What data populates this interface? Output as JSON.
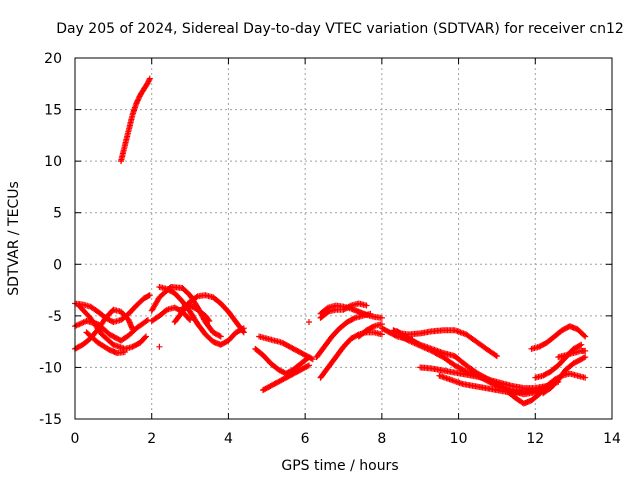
{
  "chart_data": {
    "type": "scatter",
    "title": "Day 205 of 2024, Sidereal Day-to-day VTEC variation (SDTVAR) for receiver cn12",
    "xlabel": "GPS time / hours",
    "ylabel": "SDTVAR / TECUs",
    "xlim": [
      0,
      14
    ],
    "ylim": [
      -15,
      20
    ],
    "xticks": [
      0,
      2,
      4,
      6,
      8,
      10,
      12,
      14
    ],
    "yticks": [
      -15,
      -10,
      -5,
      0,
      5,
      10,
      15,
      20
    ],
    "xtick_labels": [
      "0",
      "2",
      "4",
      "6",
      "8",
      "10",
      "12",
      "14"
    ],
    "ytick_labels": [
      "-15",
      "-10",
      "-5",
      "0",
      "5",
      "10",
      "15",
      "20"
    ],
    "grid": true,
    "legend": "none",
    "marker": "+",
    "marker_color": "#ff0000",
    "series": [
      {
        "name": "trace-1",
        "x": [
          1.2,
          1.3,
          1.4,
          1.5,
          1.6,
          1.7,
          1.8,
          1.9,
          1.95
        ],
        "y": [
          10.0,
          11.5,
          13.0,
          14.5,
          15.6,
          16.4,
          17.0,
          17.6,
          18.0
        ]
      },
      {
        "name": "trace-2",
        "x": [
          0.0,
          0.2,
          0.4,
          0.6,
          0.8,
          1.0,
          1.2,
          1.4,
          1.6,
          1.8,
          1.95
        ],
        "y": [
          -3.8,
          -3.9,
          -4.1,
          -4.6,
          -5.2,
          -5.6,
          -5.4,
          -4.8,
          -4.0,
          -3.3,
          -3.0
        ]
      },
      {
        "name": "trace-3",
        "x": [
          0.0,
          0.3,
          0.6,
          0.9,
          1.2,
          1.4,
          1.6,
          1.9
        ],
        "y": [
          -6.0,
          -5.5,
          -5.8,
          -6.8,
          -7.4,
          -6.9,
          -6.2,
          -5.4
        ]
      },
      {
        "name": "trace-4",
        "x": [
          0.0,
          0.2,
          0.4,
          0.6,
          0.8,
          1.0,
          1.2,
          1.4,
          1.5
        ],
        "y": [
          -8.2,
          -7.8,
          -7.2,
          -6.3,
          -5.2,
          -4.4,
          -4.6,
          -5.4,
          -6.3
        ]
      },
      {
        "name": "trace-5",
        "x": [
          0.1,
          0.4,
          0.7,
          1.0,
          1.3,
          1.5,
          1.7,
          1.85
        ],
        "y": [
          -4.0,
          -5.2,
          -6.8,
          -7.8,
          -8.2,
          -8.0,
          -7.6,
          -7.0
        ]
      },
      {
        "name": "trace-6",
        "x": [
          0.3,
          0.6,
          0.9,
          1.1,
          1.3
        ],
        "y": [
          -6.6,
          -7.6,
          -8.3,
          -8.6,
          -8.5
        ]
      },
      {
        "name": "trace-7",
        "x": [
          2.2
        ],
        "y": [
          -8.0
        ]
      },
      {
        "name": "trace-8",
        "x": [
          2.2,
          2.4,
          2.6,
          2.8,
          3.0,
          3.2,
          3.4,
          3.6,
          3.8,
          4.0,
          4.2,
          4.4
        ],
        "y": [
          -2.2,
          -2.4,
          -2.8,
          -3.6,
          -4.6,
          -5.8,
          -6.8,
          -7.5,
          -7.8,
          -7.4,
          -6.6,
          -6.2
        ]
      },
      {
        "name": "trace-9",
        "x": [
          2.0,
          2.2,
          2.5,
          2.8,
          3.0,
          3.2,
          3.4,
          3.6,
          3.8
        ],
        "y": [
          -4.5,
          -3.2,
          -2.2,
          -2.3,
          -3.0,
          -4.2,
          -5.6,
          -6.6,
          -7.0
        ]
      },
      {
        "name": "trace-10",
        "x": [
          2.0,
          2.2,
          2.4,
          2.6,
          2.8,
          3.0
        ],
        "y": [
          -5.5,
          -5.0,
          -4.4,
          -4.2,
          -4.6,
          -5.4
        ]
      },
      {
        "name": "trace-11",
        "x": [
          2.6,
          2.8,
          3.0,
          3.2,
          3.4,
          3.6,
          3.8,
          4.0,
          4.2,
          4.4
        ],
        "y": [
          -5.6,
          -4.6,
          -3.6,
          -3.1,
          -3.0,
          -3.2,
          -3.8,
          -4.6,
          -5.6,
          -6.6
        ]
      },
      {
        "name": "trace-12",
        "x": [
          2.8,
          3.0,
          3.2,
          3.4,
          3.5
        ],
        "y": [
          -4.2,
          -4.0,
          -4.4,
          -5.0,
          -5.5
        ]
      },
      {
        "name": "trace-13",
        "x": [
          4.8,
          5.0,
          5.2,
          5.4,
          5.6,
          5.8,
          6.0,
          6.2
        ],
        "y": [
          -7.0,
          -7.2,
          -7.4,
          -7.6,
          -8.0,
          -8.4,
          -8.8,
          -9.2
        ]
      },
      {
        "name": "trace-14",
        "x": [
          4.7,
          4.9,
          5.1,
          5.3,
          5.5,
          5.7,
          5.9,
          6.1
        ],
        "y": [
          -8.2,
          -8.8,
          -9.6,
          -10.2,
          -10.6,
          -10.2,
          -9.6,
          -9.0
        ]
      },
      {
        "name": "trace-15",
        "x": [
          4.9,
          5.1,
          5.3,
          5.5,
          5.7,
          5.9,
          6.1
        ],
        "y": [
          -12.2,
          -11.8,
          -11.4,
          -11.0,
          -10.6,
          -10.2,
          -9.8
        ]
      },
      {
        "name": "trace-16",
        "x": [
          6.1
        ],
        "y": [
          -5.6
        ]
      },
      {
        "name": "trace-17",
        "x": [
          6.4,
          6.6,
          6.8,
          7.0,
          7.2,
          7.4,
          7.6,
          7.8,
          8.0
        ],
        "y": [
          -4.8,
          -4.2,
          -4.0,
          -4.1,
          -4.3,
          -4.6,
          -4.9,
          -5.1,
          -5.2
        ]
      },
      {
        "name": "trace-18",
        "x": [
          6.4,
          6.6,
          6.8,
          7.0,
          7.2,
          7.4,
          7.6
        ],
        "y": [
          -5.2,
          -4.6,
          -4.4,
          -4.4,
          -4.0,
          -3.8,
          -4.0
        ]
      },
      {
        "name": "trace-19",
        "x": [
          6.3,
          6.5,
          6.7,
          6.9,
          7.1,
          7.3,
          7.5,
          7.7
        ],
        "y": [
          -9.0,
          -8.0,
          -7.0,
          -6.2,
          -5.6,
          -5.2,
          -5.0,
          -4.8
        ]
      },
      {
        "name": "trace-20",
        "x": [
          6.4,
          6.6,
          6.8,
          7.0,
          7.2,
          7.4,
          7.6,
          7.8,
          8.0
        ],
        "y": [
          -11.0,
          -10.0,
          -9.0,
          -8.0,
          -7.2,
          -6.8,
          -6.6,
          -6.6,
          -6.8
        ]
      },
      {
        "name": "trace-21",
        "x": [
          7.4,
          7.6,
          7.8,
          8.0
        ],
        "y": [
          -7.0,
          -6.4,
          -6.0,
          -5.8
        ]
      },
      {
        "name": "trace-22",
        "x": [
          8.3,
          8.5,
          8.7,
          9.0,
          9.3,
          9.6,
          9.9,
          10.2,
          10.5,
          10.8,
          11.0
        ],
        "y": [
          -6.4,
          -6.7,
          -6.8,
          -6.7,
          -6.5,
          -6.4,
          -6.4,
          -6.8,
          -7.6,
          -8.4,
          -8.9
        ]
      },
      {
        "name": "trace-23",
        "x": [
          8.5,
          8.7,
          9.0,
          9.3,
          9.6,
          9.9,
          10.2,
          10.5,
          10.8,
          11.1
        ],
        "y": [
          -7.0,
          -7.4,
          -7.9,
          -8.4,
          -9.0,
          -9.8,
          -10.4,
          -10.8,
          -11.4,
          -12.0
        ]
      },
      {
        "name": "trace-24",
        "x": [
          8.4,
          8.7,
          9.0,
          9.3,
          9.6,
          9.9,
          10.2,
          10.5,
          10.8,
          11.1,
          11.4,
          11.7,
          12.0,
          12.3
        ],
        "y": [
          -6.5,
          -7.2,
          -7.8,
          -8.2,
          -8.6,
          -8.9,
          -9.8,
          -10.6,
          -11.2,
          -11.8,
          -12.3,
          -12.6,
          -12.4,
          -11.8
        ]
      },
      {
        "name": "trace-25",
        "x": [
          8.0,
          8.2,
          8.4,
          8.6,
          8.8
        ],
        "y": [
          -6.2,
          -6.6,
          -7.0,
          -7.2,
          -7.3
        ]
      },
      {
        "name": "trace-26",
        "x": [
          9.0,
          9.3,
          9.6,
          9.9,
          10.2,
          10.5,
          10.8,
          11.1,
          11.4,
          11.7,
          12.0,
          12.3,
          12.6
        ],
        "y": [
          -10.0,
          -10.1,
          -10.3,
          -10.5,
          -10.7,
          -10.9,
          -11.2,
          -11.5,
          -11.8,
          -12.0,
          -12.0,
          -11.8,
          -11.4
        ]
      },
      {
        "name": "trace-27",
        "x": [
          9.5,
          9.8,
          10.1,
          10.4,
          10.7,
          11.0,
          11.3,
          11.6,
          11.9,
          12.2
        ],
        "y": [
          -10.8,
          -11.2,
          -11.6,
          -11.8,
          -12.0,
          -12.2,
          -12.4,
          -12.4,
          -12.3,
          -12.1
        ]
      },
      {
        "name": "trace-28",
        "x": [
          11.3,
          11.5,
          11.7,
          11.9,
          12.1,
          12.3,
          12.5,
          12.7,
          12.9,
          13.1,
          13.3
        ],
        "y": [
          -12.4,
          -13.0,
          -13.5,
          -13.2,
          -12.6,
          -11.8,
          -11.2,
          -10.8,
          -10.6,
          -10.8,
          -11.0
        ]
      },
      {
        "name": "trace-29",
        "x": [
          11.9,
          12.1,
          12.3,
          12.5,
          12.7,
          12.9,
          13.1,
          13.3
        ],
        "y": [
          -8.2,
          -8.0,
          -7.6,
          -7.0,
          -6.4,
          -6.0,
          -6.3,
          -7.0
        ]
      },
      {
        "name": "trace-30",
        "x": [
          12.0,
          12.2,
          12.4,
          12.6,
          12.8,
          13.0,
          13.2
        ],
        "y": [
          -11.0,
          -10.8,
          -10.4,
          -9.8,
          -9.0,
          -8.2,
          -7.8
        ]
      },
      {
        "name": "trace-31",
        "x": [
          12.2,
          12.4,
          12.6,
          12.8,
          13.0,
          13.2,
          13.3
        ],
        "y": [
          -12.5,
          -12.0,
          -11.2,
          -10.2,
          -9.6,
          -9.2,
          -9.0
        ]
      },
      {
        "name": "trace-32",
        "x": [
          12.6,
          12.8,
          13.0,
          13.2,
          13.3
        ],
        "y": [
          -9.0,
          -8.8,
          -8.6,
          -8.4,
          -8.4
        ]
      }
    ]
  }
}
